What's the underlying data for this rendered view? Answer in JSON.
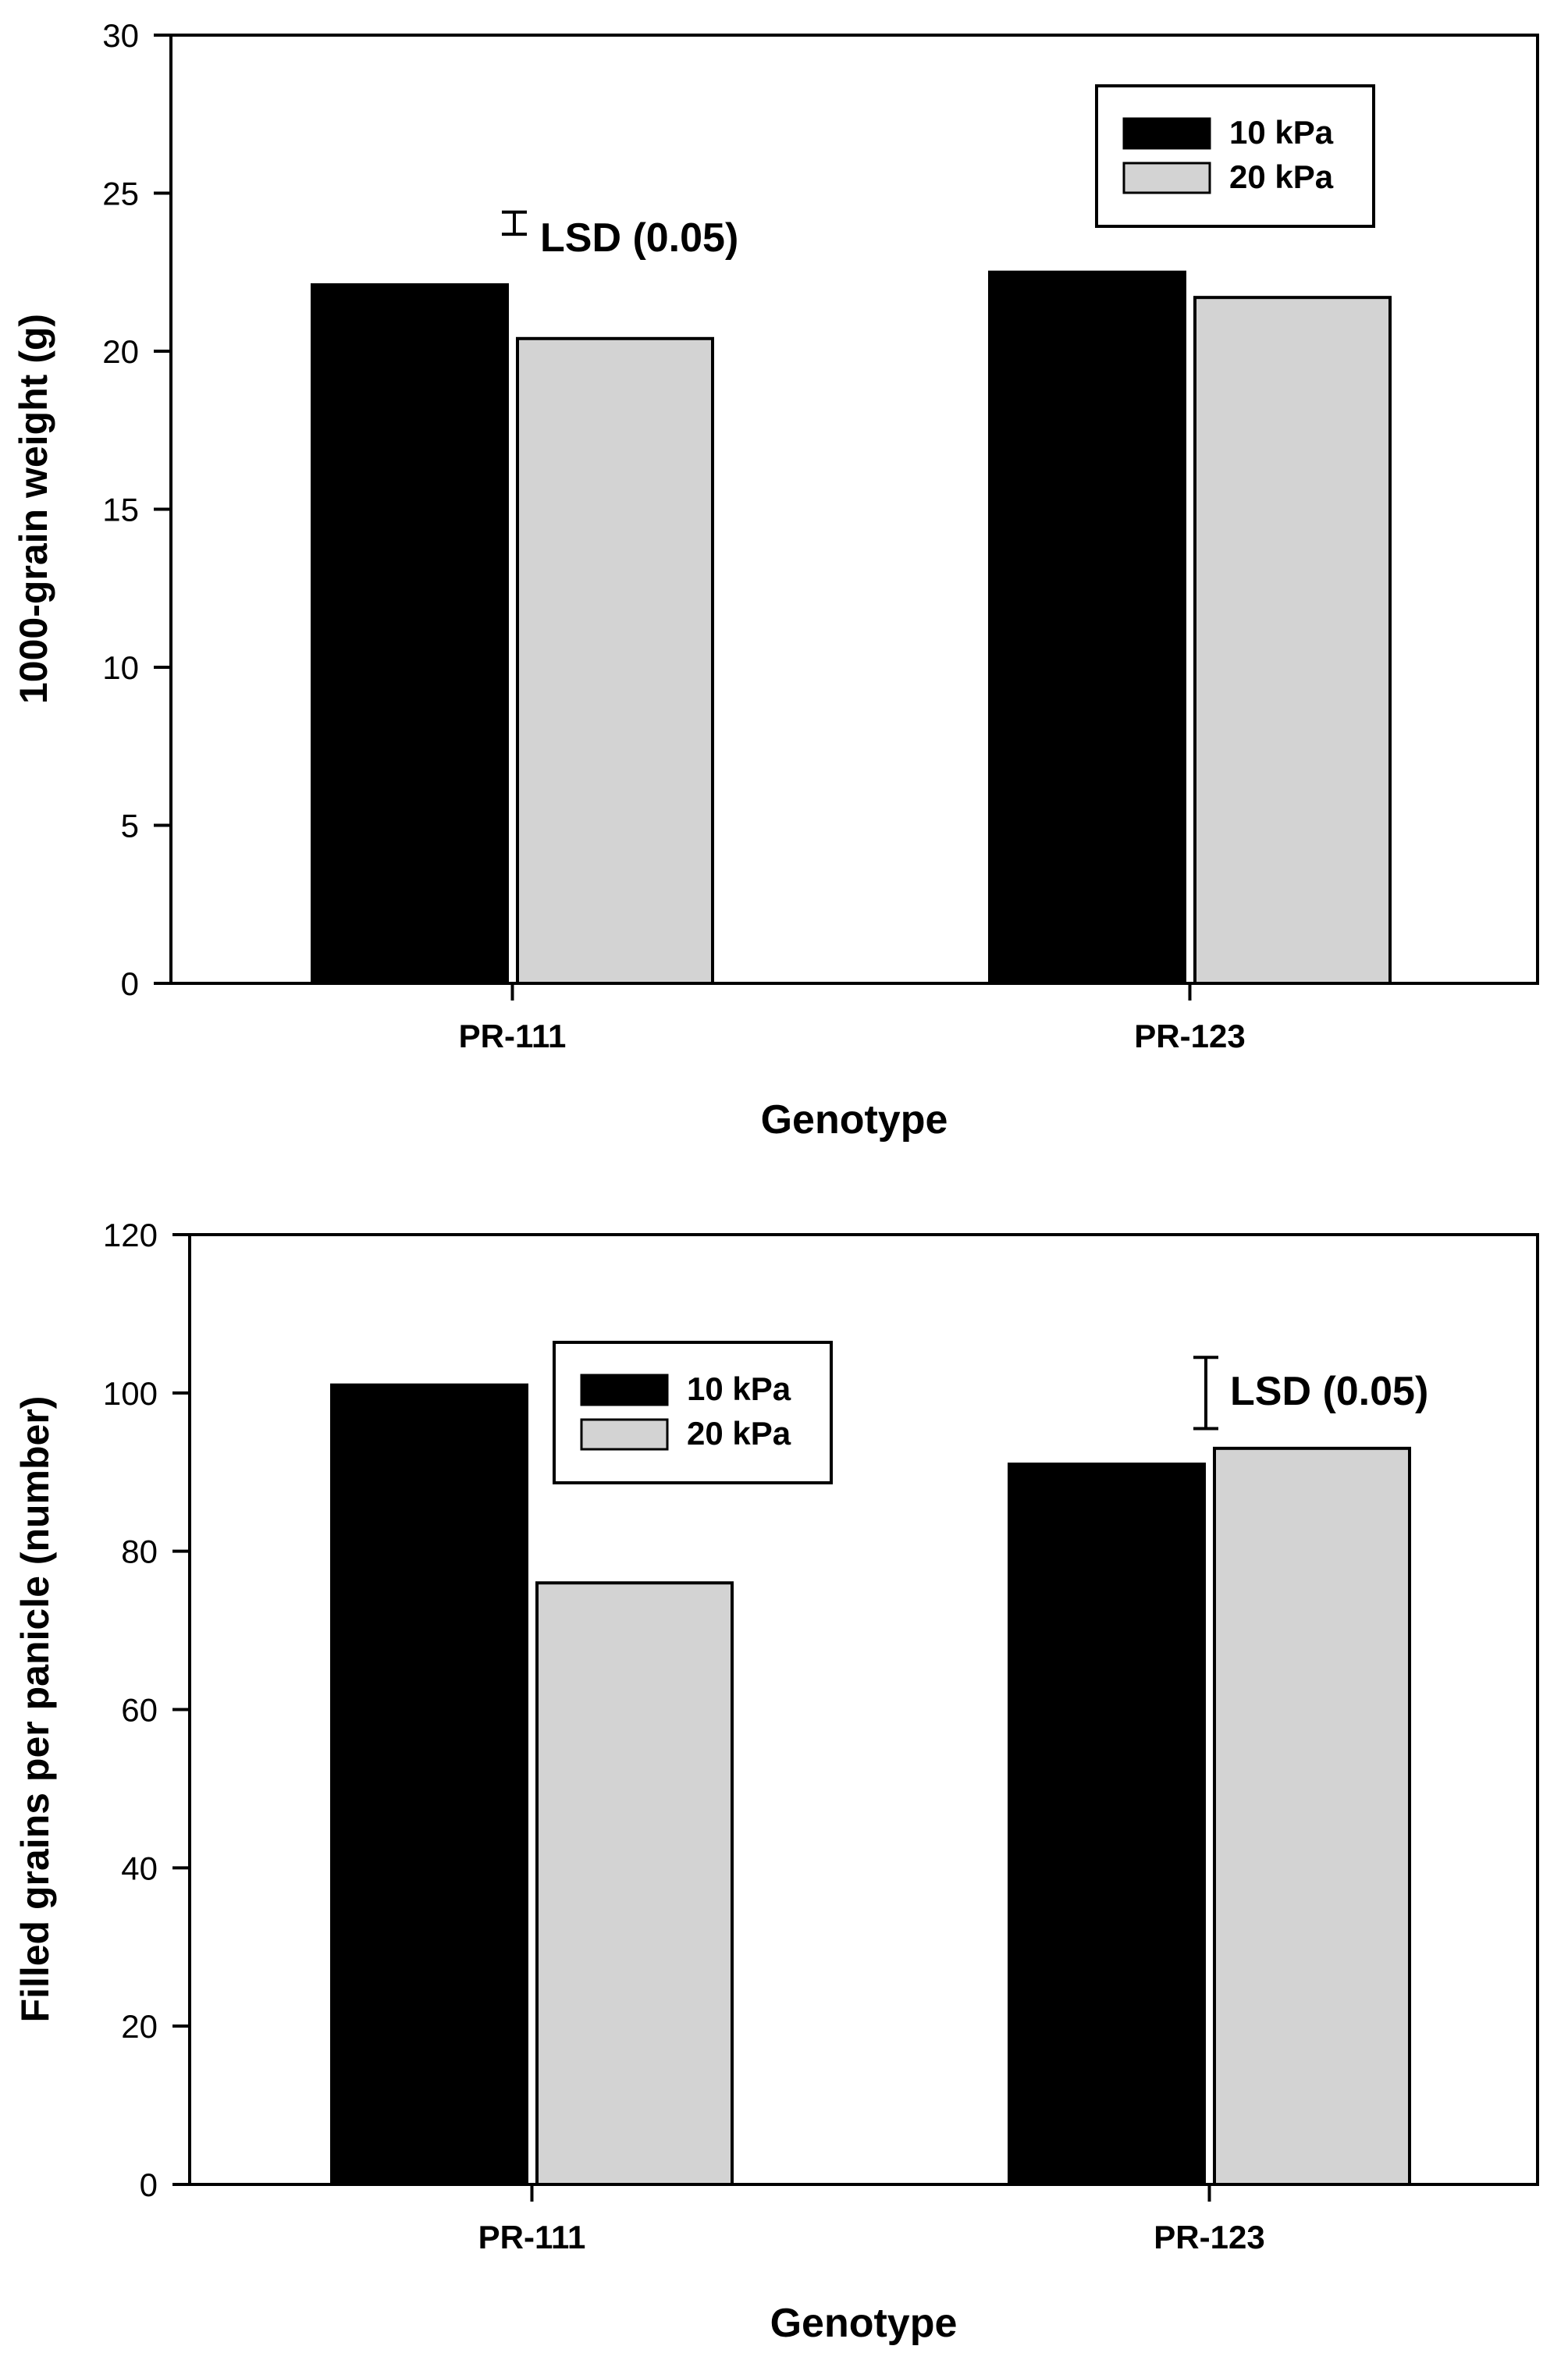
{
  "chart_data": [
    {
      "type": "bar",
      "categories": [
        "PR-111",
        "PR-123"
      ],
      "series": [
        {
          "name": "10 kPa",
          "color": "#000000",
          "values": [
            22.1,
            22.5
          ]
        },
        {
          "name": "20 kPa",
          "color": "#d3d3d3",
          "values": [
            20.4,
            21.7
          ]
        }
      ],
      "xlabel": "Genotype",
      "ylabel": "1000-grain weight (g)",
      "ylim": [
        0,
        30
      ],
      "yticks": [
        0,
        5,
        10,
        15,
        20,
        25,
        30
      ],
      "legend_position": "top-right",
      "grid": false,
      "lsd": {
        "label": "LSD (0.05)",
        "low": 23.7,
        "high": 24.4
      }
    },
    {
      "type": "bar",
      "categories": [
        "PR-111",
        "PR-123"
      ],
      "series": [
        {
          "name": "10 kPa",
          "color": "#000000",
          "values": [
            101,
            91
          ]
        },
        {
          "name": "20 kPa",
          "color": "#d3d3d3",
          "values": [
            76,
            93
          ]
        }
      ],
      "xlabel": "Genotype",
      "ylabel": "Filled grains per panicle (number)",
      "ylim": [
        0,
        120
      ],
      "yticks": [
        0,
        20,
        40,
        60,
        80,
        100,
        120
      ],
      "legend_position": "top-center",
      "grid": false,
      "lsd": {
        "label": "LSD (0.05)",
        "low": 95.5,
        "high": 104.5
      }
    }
  ]
}
